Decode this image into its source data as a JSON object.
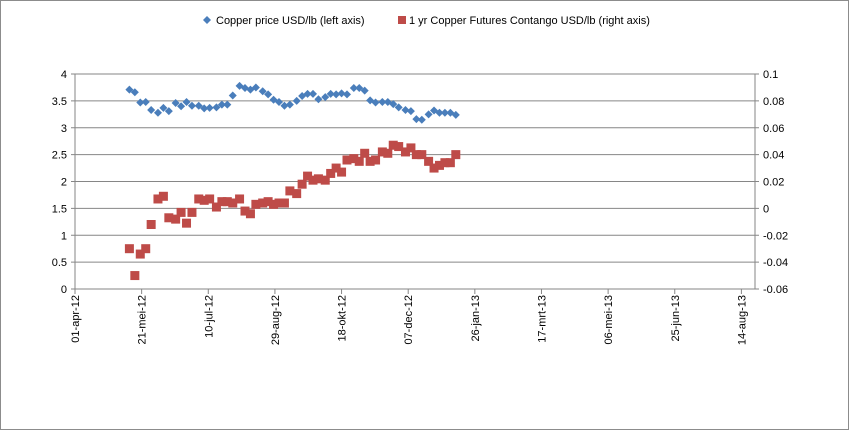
{
  "chart_data": {
    "type": "scatter",
    "x_axis": {
      "min": "2012-04-01",
      "max": "2013-08-14",
      "major_unit_days": 49,
      "tick_labels": [
        "01-apr-12",
        "21-mei-12",
        "10-jul-12",
        "29-aug-12",
        "18-okt-12",
        "07-dec-12",
        "26-jan-13",
        "17-mrt-13",
        "06-mei-13",
        "25-jun-13",
        "14-aug-13"
      ]
    },
    "y_left": {
      "min": 0,
      "max": 4,
      "step": 0.5,
      "tick_labels": [
        "0",
        "0.5",
        "1",
        "1.5",
        "2",
        "2.5",
        "3",
        "3.5",
        "4"
      ]
    },
    "y_right": {
      "min": -0.06,
      "max": 0.1,
      "step": 0.02,
      "tick_labels": [
        "-0.06",
        "-0.04",
        "-0.02",
        "0",
        "0.02",
        "0.04",
        "0.06",
        "0.08",
        "0.1"
      ]
    },
    "grid": "horizontal major gridlines",
    "legend_position": "top",
    "series": [
      {
        "name": "Copper price USD/lb (left axis)",
        "axis": "left",
        "marker": "diamond",
        "color": "#4a7ebb",
        "points": [
          [
            "2012-05-11",
            3.71
          ],
          [
            "2012-05-15",
            3.66
          ],
          [
            "2012-05-19",
            3.47
          ],
          [
            "2012-05-23",
            3.48
          ],
          [
            "2012-05-27",
            3.33
          ],
          [
            "2012-06-01",
            3.28
          ],
          [
            "2012-06-05",
            3.37
          ],
          [
            "2012-06-09",
            3.31
          ],
          [
            "2012-06-14",
            3.46
          ],
          [
            "2012-06-18",
            3.4
          ],
          [
            "2012-06-22",
            3.48
          ],
          [
            "2012-06-26",
            3.41
          ],
          [
            "2012-07-01",
            3.41
          ],
          [
            "2012-07-05",
            3.36
          ],
          [
            "2012-07-09",
            3.37
          ],
          [
            "2012-07-14",
            3.38
          ],
          [
            "2012-07-18",
            3.43
          ],
          [
            "2012-07-22",
            3.43
          ],
          [
            "2012-07-26",
            3.6
          ],
          [
            "2012-07-31",
            3.78
          ],
          [
            "2012-08-04",
            3.74
          ],
          [
            "2012-08-08",
            3.71
          ],
          [
            "2012-08-12",
            3.75
          ],
          [
            "2012-08-17",
            3.68
          ],
          [
            "2012-08-21",
            3.62
          ],
          [
            "2012-08-25",
            3.52
          ],
          [
            "2012-08-29",
            3.48
          ],
          [
            "2012-09-02",
            3.41
          ],
          [
            "2012-09-06",
            3.43
          ],
          [
            "2012-09-11",
            3.5
          ],
          [
            "2012-09-15",
            3.59
          ],
          [
            "2012-09-19",
            3.63
          ],
          [
            "2012-09-23",
            3.63
          ],
          [
            "2012-09-27",
            3.53
          ],
          [
            "2012-10-02",
            3.57
          ],
          [
            "2012-10-06",
            3.63
          ],
          [
            "2012-10-10",
            3.62
          ],
          [
            "2012-10-14",
            3.64
          ],
          [
            "2012-10-18",
            3.62
          ],
          [
            "2012-10-23",
            3.74
          ],
          [
            "2012-10-27",
            3.74
          ],
          [
            "2012-10-31",
            3.69
          ],
          [
            "2012-11-04",
            3.51
          ],
          [
            "2012-11-08",
            3.47
          ],
          [
            "2012-11-13",
            3.48
          ],
          [
            "2012-11-17",
            3.48
          ],
          [
            "2012-11-21",
            3.44
          ],
          [
            "2012-11-25",
            3.38
          ],
          [
            "2012-11-30",
            3.33
          ],
          [
            "2012-12-04",
            3.31
          ],
          [
            "2012-12-08",
            3.16
          ],
          [
            "2012-12-12",
            3.15
          ],
          [
            "2012-12-17",
            3.25
          ],
          [
            "2012-12-21",
            3.32
          ],
          [
            "2012-12-25",
            3.28
          ],
          [
            "2012-12-29",
            3.28
          ],
          [
            "2013-01-02",
            3.28
          ],
          [
            "2013-01-06",
            3.24
          ]
        ]
      },
      {
        "name": "1 yr Copper Futures Contango USD/lb (right axis)",
        "axis": "right",
        "marker": "square",
        "color": "#be4b48",
        "points": [
          [
            "2012-05-11",
            -0.03
          ],
          [
            "2012-05-15",
            -0.05
          ],
          [
            "2012-05-19",
            -0.034
          ],
          [
            "2012-05-23",
            -0.03
          ],
          [
            "2012-05-27",
            -0.012
          ],
          [
            "2012-06-01",
            0.007
          ],
          [
            "2012-06-05",
            0.009
          ],
          [
            "2012-06-09",
            -0.007
          ],
          [
            "2012-06-14",
            -0.008
          ],
          [
            "2012-06-18",
            -0.003
          ],
          [
            "2012-06-22",
            -0.011
          ],
          [
            "2012-06-26",
            -0.003
          ],
          [
            "2012-07-01",
            0.007
          ],
          [
            "2012-07-05",
            0.006
          ],
          [
            "2012-07-09",
            0.007
          ],
          [
            "2012-07-14",
            0.001
          ],
          [
            "2012-07-18",
            0.005
          ],
          [
            "2012-07-22",
            0.005
          ],
          [
            "2012-07-26",
            0.004
          ],
          [
            "2012-07-31",
            0.007
          ],
          [
            "2012-08-04",
            -0.002
          ],
          [
            "2012-08-08",
            -0.004
          ],
          [
            "2012-08-12",
            0.003
          ],
          [
            "2012-08-17",
            0.004
          ],
          [
            "2012-08-21",
            0.005
          ],
          [
            "2012-08-25",
            0.003
          ],
          [
            "2012-08-29",
            0.004
          ],
          [
            "2012-09-02",
            0.004
          ],
          [
            "2012-09-06",
            0.013
          ],
          [
            "2012-09-11",
            0.011
          ],
          [
            "2012-09-15",
            0.018
          ],
          [
            "2012-09-19",
            0.024
          ],
          [
            "2012-09-23",
            0.021
          ],
          [
            "2012-09-27",
            0.022
          ],
          [
            "2012-10-02",
            0.021
          ],
          [
            "2012-10-06",
            0.026
          ],
          [
            "2012-10-10",
            0.03
          ],
          [
            "2012-10-14",
            0.027
          ],
          [
            "2012-10-18",
            0.036
          ],
          [
            "2012-10-23",
            0.037
          ],
          [
            "2012-10-27",
            0.035
          ],
          [
            "2012-10-31",
            0.041
          ],
          [
            "2012-11-04",
            0.035
          ],
          [
            "2012-11-08",
            0.036
          ],
          [
            "2012-11-13",
            0.042
          ],
          [
            "2012-11-17",
            0.041
          ],
          [
            "2012-11-21",
            0.047
          ],
          [
            "2012-11-25",
            0.046
          ],
          [
            "2012-11-30",
            0.042
          ],
          [
            "2012-12-04",
            0.045
          ],
          [
            "2012-12-08",
            0.04
          ],
          [
            "2012-12-12",
            0.04
          ],
          [
            "2012-12-17",
            0.035
          ],
          [
            "2012-12-21",
            0.03
          ],
          [
            "2012-12-25",
            0.032
          ],
          [
            "2012-12-29",
            0.034
          ],
          [
            "2013-01-02",
            0.034
          ],
          [
            "2013-01-06",
            0.04
          ]
        ]
      }
    ]
  }
}
